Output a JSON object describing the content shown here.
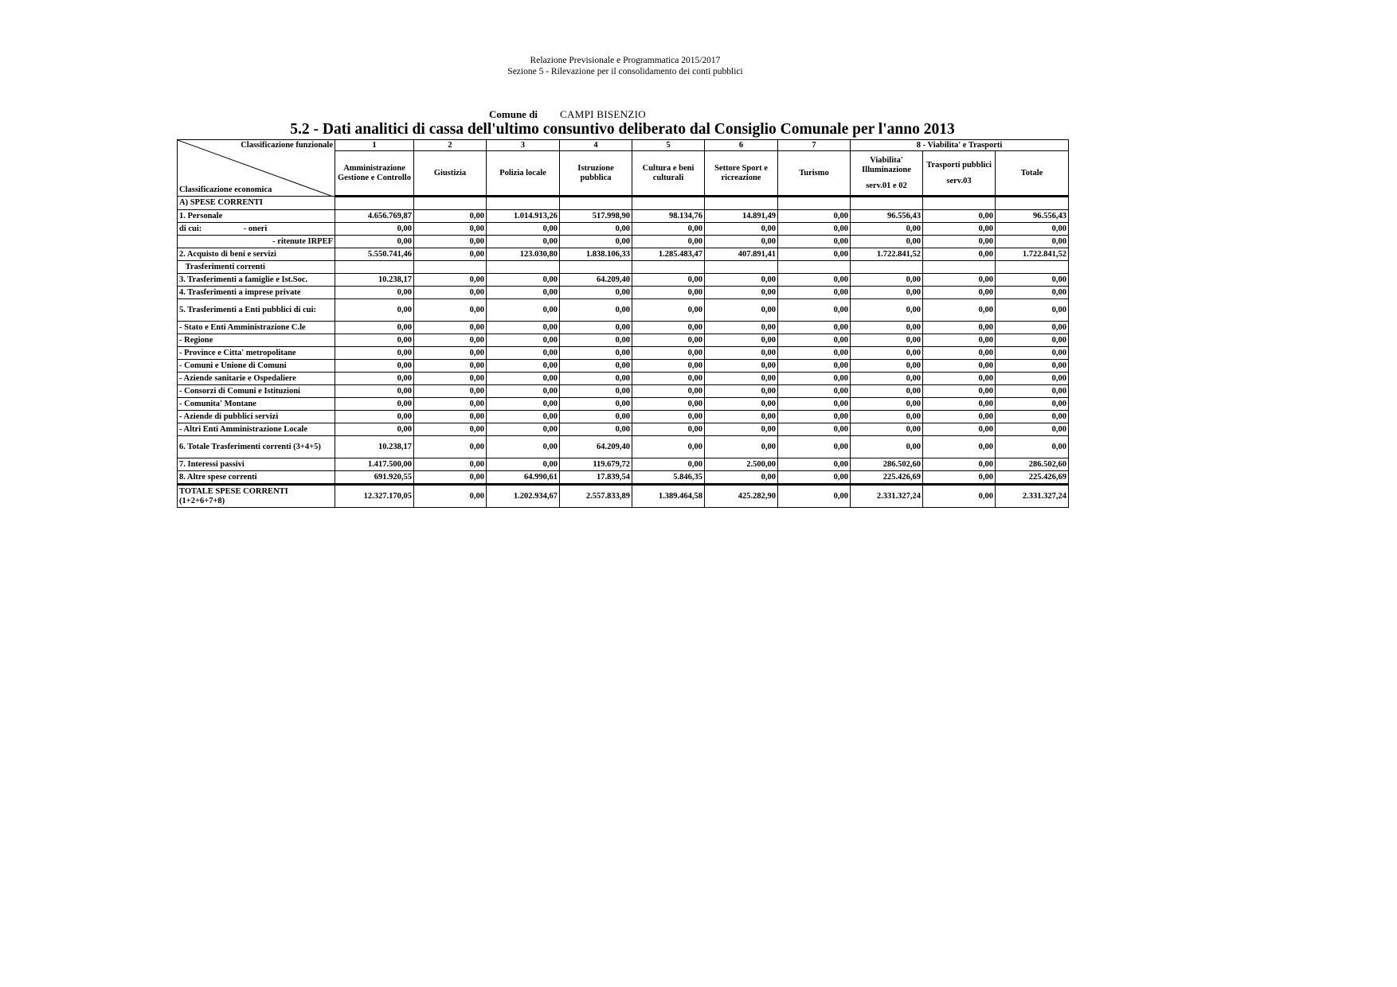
{
  "header": {
    "line1": "Relazione Previsionale e Programmatica 2015/2017",
    "line2": "Sezione 5 - Rilevazione per il consolidamento dei conti pubblici"
  },
  "comune_label": "Comune di",
  "comune_name": "CAMPI BISENZIO",
  "title": "5.2 - Dati analitici di cassa dell'ultimo consuntivo deliberato dal Consiglio Comunale per l'anno 2013",
  "table": {
    "corner_top": "Classificazione funzionale",
    "corner_bottom": "Classificazione economica",
    "group_numbers": [
      "1",
      "2",
      "3",
      "4",
      "5",
      "6",
      "7"
    ],
    "group8": "8  - Viabilita' e Trasporti",
    "columns": [
      {
        "label": "Amministrazione Gestione e Controllo"
      },
      {
        "label": "Giustizia"
      },
      {
        "label": "Polizia locale"
      },
      {
        "label": "Istruzione pubblica"
      },
      {
        "label": "Cultura e beni culturali"
      },
      {
        "label": "Settore Sport e ricreazione"
      },
      {
        "label": "Turismo"
      },
      {
        "label": "Viabilita' Illuminazione",
        "sub": "serv.01 e 02"
      },
      {
        "label": "Trasporti pubblici",
        "sub": "serv.03"
      },
      {
        "label": "Totale"
      }
    ],
    "rows": [
      {
        "label": "A) SPESE CORRENTI",
        "values": [
          "",
          "",
          "",
          "",
          "",
          "",
          "",
          "",
          "",
          ""
        ]
      },
      {
        "label": "1. Personale",
        "values": [
          "4.656.769,87",
          "0,00",
          "1.014.913,26",
          "517.998,90",
          "98.134,76",
          "14.891,49",
          "0,00",
          "96.556,43",
          "0,00",
          "96.556,43"
        ]
      },
      {
        "label": "di cui:                    - oneri",
        "values": [
          "0,00",
          "0,00",
          "0,00",
          "0,00",
          "0,00",
          "0,00",
          "0,00",
          "0,00",
          "0,00",
          "0,00"
        ]
      },
      {
        "label": "- ritenute IRPEF",
        "align": "right",
        "values": [
          "0,00",
          "0,00",
          "0,00",
          "0,00",
          "0,00",
          "0,00",
          "0,00",
          "0,00",
          "0,00",
          "0,00"
        ]
      },
      {
        "label": "2. Acquisto di beni e servizi",
        "values": [
          "5.550.741,46",
          "0,00",
          "123.030,80",
          "1.838.106,33",
          "1.285.483,47",
          "407.891,41",
          "0,00",
          "1.722.841,52",
          "0,00",
          "1.722.841,52"
        ]
      },
      {
        "label": "   Trasferimenti correnti",
        "values": [
          "",
          "",
          "",
          "",
          "",
          "",
          "",
          "",
          "",
          ""
        ]
      },
      {
        "label": "3. Trasferimenti a famiglie e Ist.Soc.",
        "values": [
          "10.238,17",
          "0,00",
          "0,00",
          "64.209,40",
          "0,00",
          "0,00",
          "0,00",
          "0,00",
          "0,00",
          "0,00"
        ]
      },
      {
        "label": "4. Trasferimenti a imprese private",
        "values": [
          "0,00",
          "0,00",
          "0,00",
          "0,00",
          "0,00",
          "0,00",
          "0,00",
          "0,00",
          "0,00",
          "0,00"
        ]
      },
      {
        "label": "5. Trasferimenti a Enti pubblici di cui:",
        "tall": true,
        "values": [
          "0,00",
          "0,00",
          "0,00",
          "0,00",
          "0,00",
          "0,00",
          "0,00",
          "0,00",
          "0,00",
          "0,00"
        ]
      },
      {
        "label": "- Stato e Enti Amministrazione C.le",
        "values": [
          "0,00",
          "0,00",
          "0,00",
          "0,00",
          "0,00",
          "0,00",
          "0,00",
          "0,00",
          "0,00",
          "0,00"
        ]
      },
      {
        "label": "- Regione",
        "values": [
          "0,00",
          "0,00",
          "0,00",
          "0,00",
          "0,00",
          "0,00",
          "0,00",
          "0,00",
          "0,00",
          "0,00"
        ]
      },
      {
        "label": "- Province e Citta' metropolitane",
        "values": [
          "0,00",
          "0,00",
          "0,00",
          "0,00",
          "0,00",
          "0,00",
          "0,00",
          "0,00",
          "0,00",
          "0,00"
        ]
      },
      {
        "label": "- Comuni e Unione di Comuni",
        "values": [
          "0,00",
          "0,00",
          "0,00",
          "0,00",
          "0,00",
          "0,00",
          "0,00",
          "0,00",
          "0,00",
          "0,00"
        ]
      },
      {
        "label": "- Aziende sanitarie e Ospedaliere",
        "values": [
          "0,00",
          "0,00",
          "0,00",
          "0,00",
          "0,00",
          "0,00",
          "0,00",
          "0,00",
          "0,00",
          "0,00"
        ]
      },
      {
        "label": "- Consorzi di Comuni e Istituzioni",
        "values": [
          "0,00",
          "0,00",
          "0,00",
          "0,00",
          "0,00",
          "0,00",
          "0,00",
          "0,00",
          "0,00",
          "0,00"
        ]
      },
      {
        "label": "- Comunita' Montane",
        "values": [
          "0,00",
          "0,00",
          "0,00",
          "0,00",
          "0,00",
          "0,00",
          "0,00",
          "0,00",
          "0,00",
          "0,00"
        ]
      },
      {
        "label": "- Aziende di pubblici servizi",
        "values": [
          "0,00",
          "0,00",
          "0,00",
          "0,00",
          "0,00",
          "0,00",
          "0,00",
          "0,00",
          "0,00",
          "0,00"
        ]
      },
      {
        "label": "- Altri Enti Amministrazione Locale",
        "values": [
          "0,00",
          "0,00",
          "0,00",
          "0,00",
          "0,00",
          "0,00",
          "0,00",
          "0,00",
          "0,00",
          "0,00"
        ]
      },
      {
        "label": "6. Totale Trasferimenti correnti (3+4+5)",
        "tall": true,
        "values": [
          "10.238,17",
          "0,00",
          "0,00",
          "64.209,40",
          "0,00",
          "0,00",
          "0,00",
          "0,00",
          "0,00",
          "0,00"
        ]
      },
      {
        "label": "7. Interessi passivi",
        "values": [
          "1.417.500,00",
          "0,00",
          "0,00",
          "119.679,72",
          "0,00",
          "2.500,00",
          "0,00",
          "286.502,60",
          "0,00",
          "286.502,60"
        ]
      },
      {
        "label": "8. Altre spese correnti",
        "values": [
          "691.920,55",
          "0,00",
          "64.990,61",
          "17.839,54",
          "5.846,35",
          "0,00",
          "0,00",
          "225.426,69",
          "0,00",
          "225.426,69"
        ]
      },
      {
        "label": "TOTALE SPESE CORRENTI (1+2+6+7+8)",
        "total": true,
        "values": [
          "12.327.170,05",
          "0,00",
          "1.202.934,67",
          "2.557.833,89",
          "1.389.464,58",
          "425.282,90",
          "0,00",
          "2.331.327,24",
          "0,00",
          "2.331.327,24"
        ]
      }
    ]
  }
}
